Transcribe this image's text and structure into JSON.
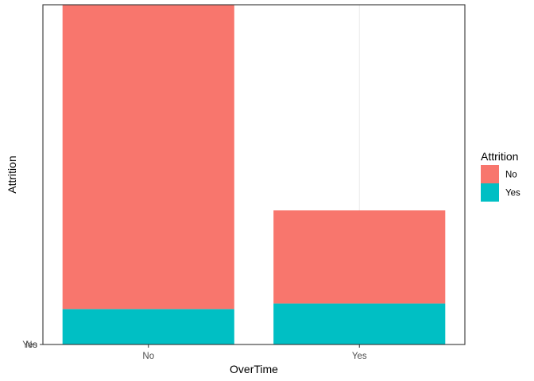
{
  "chart_data": {
    "type": "bar",
    "stacked": true,
    "categories": [
      "No",
      "Yes"
    ],
    "series": [
      {
        "name": "No",
        "color": "#F8766D",
        "values": [
          944,
          289
        ]
      },
      {
        "name": "Yes",
        "color": "#00BFC4",
        "values": [
          110,
          127
        ]
      }
    ],
    "xlabel": "OverTime",
    "ylabel": "Attrition",
    "y_tick_labels": [
      "Yes",
      "No"
    ],
    "ylim": [
      0,
      1054
    ],
    "grid": true,
    "legend": {
      "title": "Attrition",
      "position": "right",
      "entries": [
        "No",
        "Yes"
      ]
    }
  }
}
